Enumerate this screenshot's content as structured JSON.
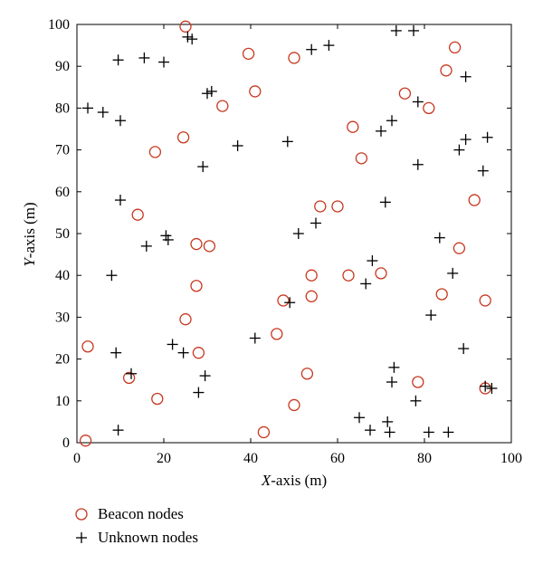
{
  "chart_data": {
    "type": "scatter",
    "xlabel_italic": "X",
    "xlabel_rest": "-axis (m)",
    "ylabel_italic": "Y",
    "ylabel_rest": "-axis (m)",
    "xlim": [
      0,
      100
    ],
    "ylim": [
      0,
      100
    ],
    "xticks": [
      "0",
      "20",
      "40",
      "60",
      "80",
      "100"
    ],
    "yticks": [
      "0",
      "10",
      "20",
      "30",
      "40",
      "50",
      "60",
      "70",
      "80",
      "90",
      "100"
    ],
    "grid": false,
    "legend_placement": "bottom-left, below plot",
    "colors": {
      "beacon": "#c8361e",
      "unknown": "#000000"
    },
    "series": [
      {
        "name": "Beacon nodes",
        "marker": "circle",
        "points": [
          [
            25,
            99.5
          ],
          [
            39.5,
            93
          ],
          [
            50,
            92
          ],
          [
            87,
            94.5
          ],
          [
            85,
            89
          ],
          [
            41,
            84
          ],
          [
            33.5,
            80.5
          ],
          [
            75.5,
            83.5
          ],
          [
            81,
            80
          ],
          [
            24.5,
            73
          ],
          [
            18,
            69.5
          ],
          [
            63.5,
            75.5
          ],
          [
            65.5,
            68
          ],
          [
            91.5,
            58
          ],
          [
            14,
            54.5
          ],
          [
            56,
            56.5
          ],
          [
            60,
            56.5
          ],
          [
            27.5,
            47.5
          ],
          [
            30.5,
            47
          ],
          [
            88,
            46.5
          ],
          [
            54,
            40
          ],
          [
            62.5,
            40
          ],
          [
            70,
            40.5
          ],
          [
            27.5,
            37.5
          ],
          [
            47.5,
            34
          ],
          [
            54,
            35
          ],
          [
            84,
            35.5
          ],
          [
            94,
            34
          ],
          [
            25,
            29.5
          ],
          [
            46,
            26
          ],
          [
            2.5,
            23
          ],
          [
            28,
            21.5
          ],
          [
            53,
            16.5
          ],
          [
            78.5,
            14.5
          ],
          [
            12,
            15.5
          ],
          [
            18.5,
            10.5
          ],
          [
            50,
            9
          ],
          [
            94,
            13
          ],
          [
            43,
            2.5
          ],
          [
            2,
            0.5
          ]
        ]
      },
      {
        "name": "Unknown nodes",
        "marker": "plus",
        "points": [
          [
            25.5,
            97
          ],
          [
            26.5,
            96.5
          ],
          [
            73.5,
            98.5
          ],
          [
            77.5,
            98.5
          ],
          [
            58,
            95
          ],
          [
            54,
            94
          ],
          [
            9.5,
            91.5
          ],
          [
            15.5,
            92
          ],
          [
            20,
            91
          ],
          [
            89.5,
            87.5
          ],
          [
            30,
            83.5
          ],
          [
            31,
            84
          ],
          [
            2.5,
            80
          ],
          [
            6,
            79
          ],
          [
            10,
            77
          ],
          [
            78.5,
            81.5
          ],
          [
            72.5,
            77
          ],
          [
            70,
            74.5
          ],
          [
            37,
            71
          ],
          [
            48.5,
            72
          ],
          [
            89.5,
            72.5
          ],
          [
            94.5,
            73
          ],
          [
            88,
            70
          ],
          [
            29,
            66
          ],
          [
            78.5,
            66.5
          ],
          [
            93.5,
            65
          ],
          [
            10,
            58
          ],
          [
            71,
            57.5
          ],
          [
            20.5,
            49.5
          ],
          [
            21,
            48.5
          ],
          [
            16,
            47
          ],
          [
            51,
            50
          ],
          [
            55,
            52.5
          ],
          [
            83.5,
            49
          ],
          [
            8,
            40
          ],
          [
            68,
            43.5
          ],
          [
            86.5,
            40.5
          ],
          [
            66.5,
            38
          ],
          [
            49,
            33.5
          ],
          [
            81.5,
            30.5
          ],
          [
            41,
            25
          ],
          [
            22,
            23.5
          ],
          [
            24.5,
            21.5
          ],
          [
            9,
            21.5
          ],
          [
            89,
            22.5
          ],
          [
            12.5,
            16.5
          ],
          [
            29.5,
            16
          ],
          [
            28,
            12
          ],
          [
            73,
            18
          ],
          [
            72.5,
            14.5
          ],
          [
            78,
            10
          ],
          [
            9.5,
            3
          ],
          [
            65,
            6
          ],
          [
            67.5,
            3
          ],
          [
            71.5,
            5
          ],
          [
            72,
            2.5
          ],
          [
            81,
            2.5
          ],
          [
            85.5,
            2.5
          ],
          [
            94,
            13.5
          ],
          [
            95.5,
            13
          ]
        ]
      }
    ]
  }
}
